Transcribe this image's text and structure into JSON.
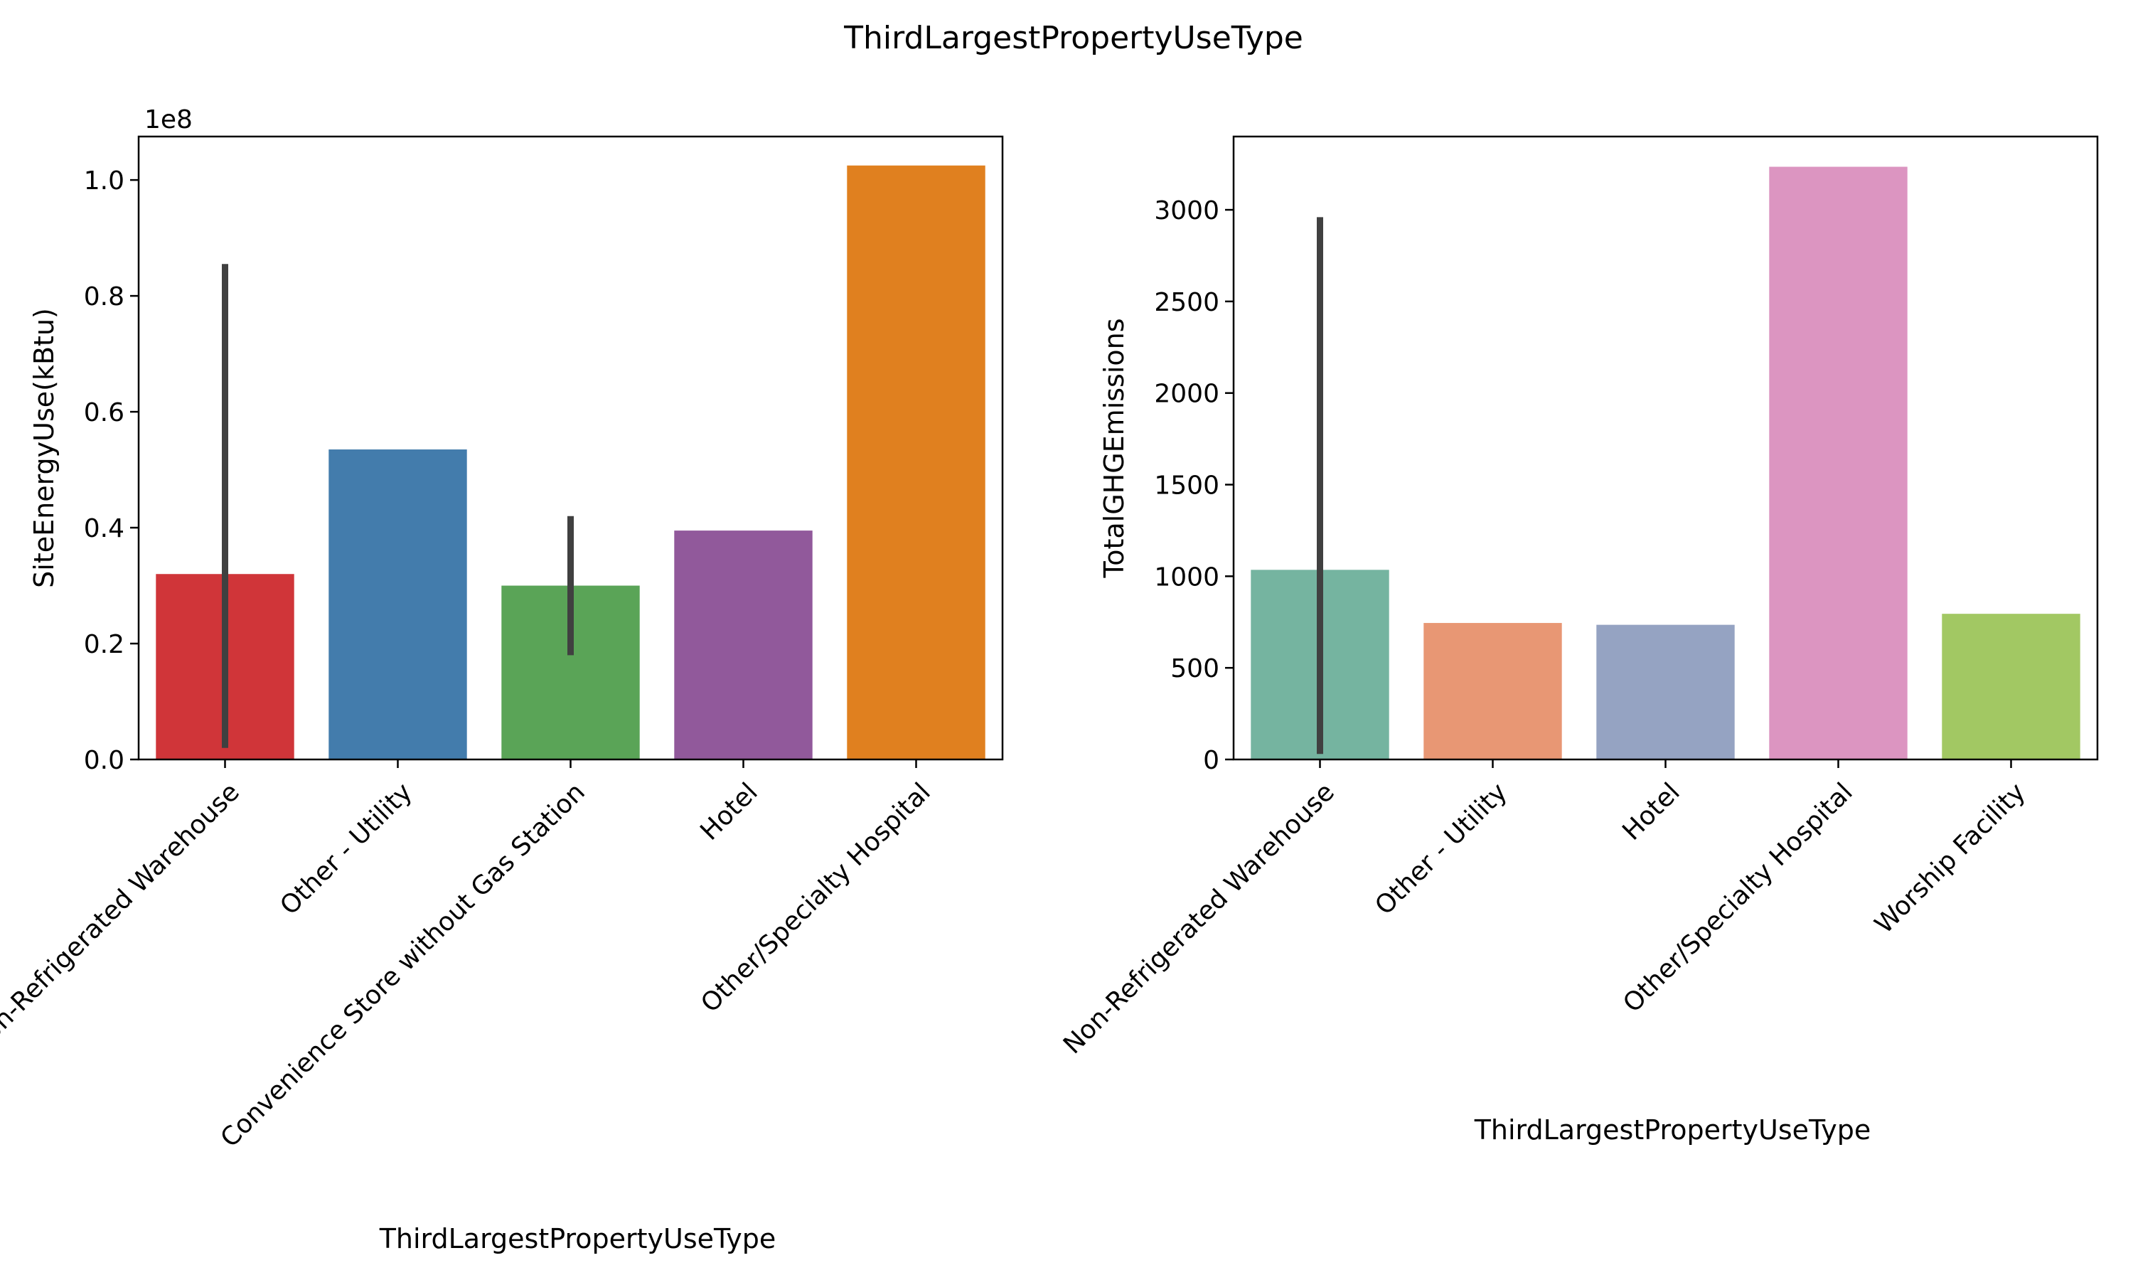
{
  "figure": {
    "suptitle": "ThirdLargestPropertyUseType"
  },
  "colors": {
    "errorbar": "#404040",
    "axis": "#000000"
  },
  "chart_data": [
    {
      "type": "bar",
      "title": "",
      "xlabel": "ThirdLargestPropertyUseType",
      "ylabel": "SiteEnergyUse(kBtu)",
      "offset_label": "1e8",
      "ylim": [
        0,
        1.075
      ],
      "yticks": [
        0.0,
        0.2,
        0.4,
        0.6,
        0.8,
        1.0
      ],
      "ytick_labels": [
        "0.0",
        "0.2",
        "0.4",
        "0.6",
        "0.8",
        "1.0"
      ],
      "categories": [
        "Non-Refrigerated Warehouse",
        "Other - Utility",
        "Convenience Store without Gas Station",
        "Hotel",
        "Other/Specialty Hospital"
      ],
      "values": [
        0.32,
        0.535,
        0.3,
        0.395,
        1.025
      ],
      "errors": [
        [
          0.02,
          0.855
        ],
        null,
        [
          0.18,
          0.42
        ],
        null,
        null
      ],
      "bar_colors": [
        "#d03539",
        "#437cac",
        "#5aa457",
        "#91599b",
        "#e0801f"
      ],
      "grid": false,
      "legend": "none"
    },
    {
      "type": "bar",
      "title": "",
      "xlabel": "ThirdLargestPropertyUseType",
      "ylabel": "TotalGHGEmissions",
      "ylim": [
        0,
        3400
      ],
      "yticks": [
        0,
        500,
        1000,
        1500,
        2000,
        2500,
        3000
      ],
      "ytick_labels": [
        "0",
        "500",
        "1000",
        "1500",
        "2000",
        "2500",
        "3000"
      ],
      "categories": [
        "Non-Refrigerated Warehouse",
        "Other - Utility",
        "Hotel",
        "Other/Specialty Hospital",
        "Worship Facility"
      ],
      "values": [
        1035,
        745,
        735,
        3235,
        795
      ],
      "errors": [
        [
          30,
          2960
        ],
        null,
        null,
        null,
        null
      ],
      "bar_colors": [
        "#75b4a0",
        "#e89774",
        "#95a3c2",
        "#dc95c1",
        "#a2c863"
      ],
      "grid": false,
      "legend": "none"
    }
  ]
}
